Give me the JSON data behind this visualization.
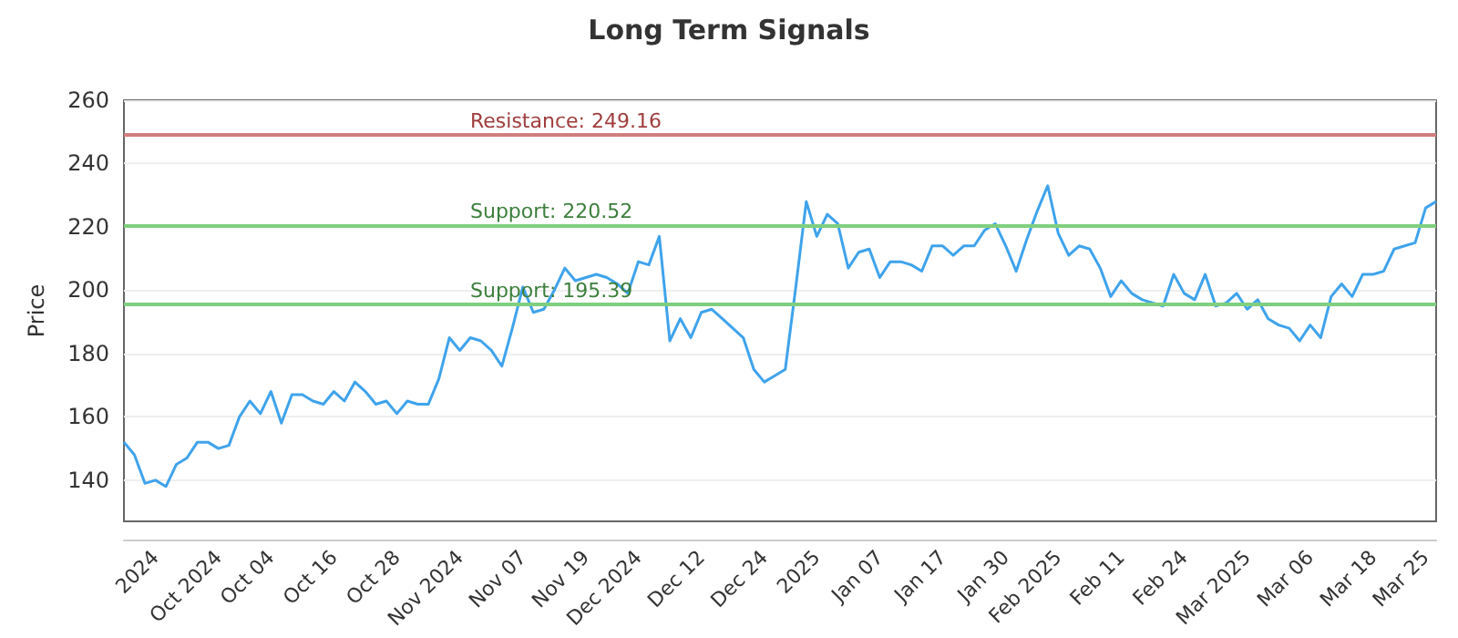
{
  "chart_data": {
    "type": "line",
    "title": "Long Term Signals",
    "ylabel": "Price",
    "categories": [
      null,
      null,
      null,
      "2024",
      null,
      null,
      null,
      null,
      null,
      "Oct 2024",
      null,
      null,
      null,
      null,
      "Oct 04",
      null,
      null,
      null,
      null,
      null,
      "Oct 16",
      null,
      null,
      null,
      null,
      null,
      "Oct 28",
      null,
      null,
      null,
      null,
      null,
      "Nov 2024",
      null,
      null,
      null,
      null,
      null,
      "Nov 07",
      null,
      null,
      null,
      null,
      null,
      "Nov 19",
      null,
      null,
      null,
      null,
      "Dec 2024",
      null,
      null,
      null,
      null,
      null,
      "Dec 12",
      null,
      null,
      null,
      null,
      null,
      "Dec 24",
      null,
      null,
      null,
      null,
      "2025",
      null,
      null,
      null,
      null,
      null,
      "Jan 07",
      null,
      null,
      null,
      null,
      null,
      "Jan 17",
      null,
      null,
      null,
      null,
      null,
      "Jan 30",
      null,
      null,
      null,
      null,
      "Feb 2025",
      null,
      null,
      null,
      null,
      null,
      "Feb 11",
      null,
      null,
      null,
      null,
      null,
      "Feb 24",
      null,
      null,
      null,
      null,
      null,
      "Mar 2025",
      null,
      null,
      null,
      null,
      null,
      "Mar 06",
      null,
      null,
      null,
      null,
      null,
      "Mar 18",
      null,
      null,
      null,
      null,
      "Mar 25",
      null
    ],
    "series": [
      {
        "color": "#3fa3ec",
        "values": [
          152,
          148,
          139,
          140,
          138,
          145,
          147,
          152,
          152,
          150,
          151,
          160,
          165,
          161,
          168,
          158,
          167,
          167,
          165,
          164,
          168,
          165,
          171,
          168,
          164,
          165,
          161,
          165,
          164,
          164,
          172,
          185,
          181,
          185,
          184,
          181,
          176,
          188,
          201,
          193,
          194,
          200,
          207,
          203,
          204,
          205,
          204,
          202,
          199,
          209,
          208,
          217,
          184,
          191,
          185,
          193,
          194,
          191,
          188,
          185,
          175,
          171,
          173,
          175,
          201,
          228,
          217,
          224,
          221,
          207,
          212,
          213,
          204,
          209,
          209,
          208,
          206,
          214,
          214,
          211,
          214,
          214,
          219,
          221,
          214,
          206,
          216,
          225,
          233,
          218,
          211,
          214,
          213,
          207,
          198,
          203,
          199,
          197,
          196,
          195,
          205,
          199,
          197,
          205,
          195,
          196,
          199,
          194,
          197,
          191,
          189,
          188,
          184,
          189,
          185,
          198,
          202,
          198,
          205,
          205,
          206,
          213,
          214,
          215,
          226,
          228
        ]
      }
    ],
    "ylim": [
      127,
      260
    ],
    "yticks": [
      140,
      160,
      180,
      200,
      220,
      240,
      260
    ],
    "grid": "y",
    "marker": "none",
    "line_style": "solid",
    "ref_lines": [
      {
        "axis": "y",
        "value": 249.16,
        "label": "Resistance: 249.16",
        "color": "#d07f7f"
      },
      {
        "axis": "y",
        "value": 220.52,
        "label": "Support: 220.52",
        "color": "#7fcf7f"
      },
      {
        "axis": "y",
        "value": 195.39,
        "label": "Support: 195.39",
        "color": "#7fcf7f"
      }
    ]
  }
}
